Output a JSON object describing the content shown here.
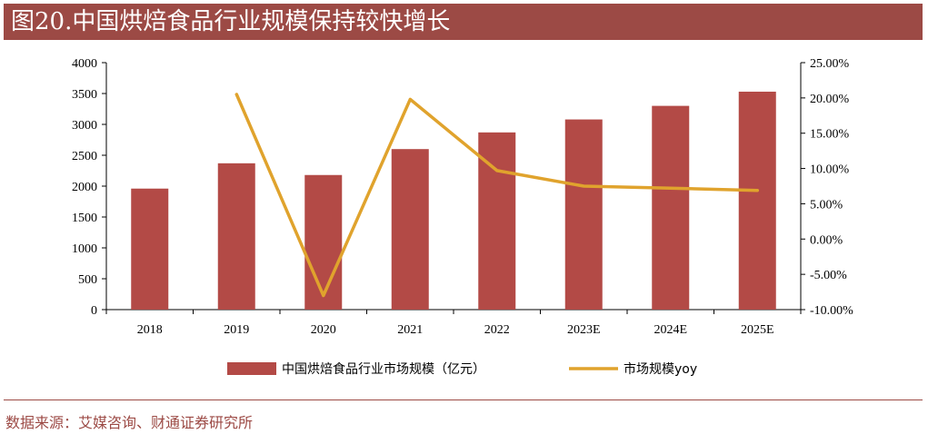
{
  "header": {
    "title": "图20.中国烘焙食品行业规模保持较快增长"
  },
  "source": {
    "text": "数据来源：艾媒咨询、财通证券研究所"
  },
  "colors": {
    "bar": "#b34a46",
    "line": "#e0a32d",
    "title_bg": "#9c4a45",
    "source": "#9c4a45",
    "axis": "#000000"
  },
  "chart_data": {
    "type": "bar+line",
    "title": "图20.中国烘焙食品行业规模保持较快增长",
    "categories": [
      "2018",
      "2019",
      "2020",
      "2021",
      "2022",
      "2023E",
      "2024E",
      "2025E"
    ],
    "series": [
      {
        "name": "中国烘焙食品行业市场规模（亿元）",
        "type": "bar",
        "axis": "left",
        "values": [
          1960,
          2370,
          2180,
          2600,
          2870,
          3080,
          3300,
          3530
        ]
      },
      {
        "name": "市场规模yoy",
        "type": "line",
        "axis": "right",
        "values": [
          null,
          20.5,
          -8.0,
          19.8,
          9.7,
          7.5,
          7.2,
          6.9
        ]
      }
    ],
    "left_axis": {
      "min": 0,
      "max": 4000,
      "step": 500,
      "ticks": [
        "0",
        "500",
        "1000",
        "1500",
        "2000",
        "2500",
        "3000",
        "3500",
        "4000"
      ]
    },
    "right_axis": {
      "min": -10,
      "max": 25,
      "step": 5,
      "ticks": [
        "-10.00%",
        "-5.00%",
        "0.00%",
        "5.00%",
        "10.00%",
        "15.00%",
        "20.00%",
        "25.00%"
      ]
    },
    "legend": {
      "position": "bottom",
      "entries": [
        "中国烘焙食品行业市场规模（亿元）",
        "市场规模yoy"
      ]
    }
  }
}
